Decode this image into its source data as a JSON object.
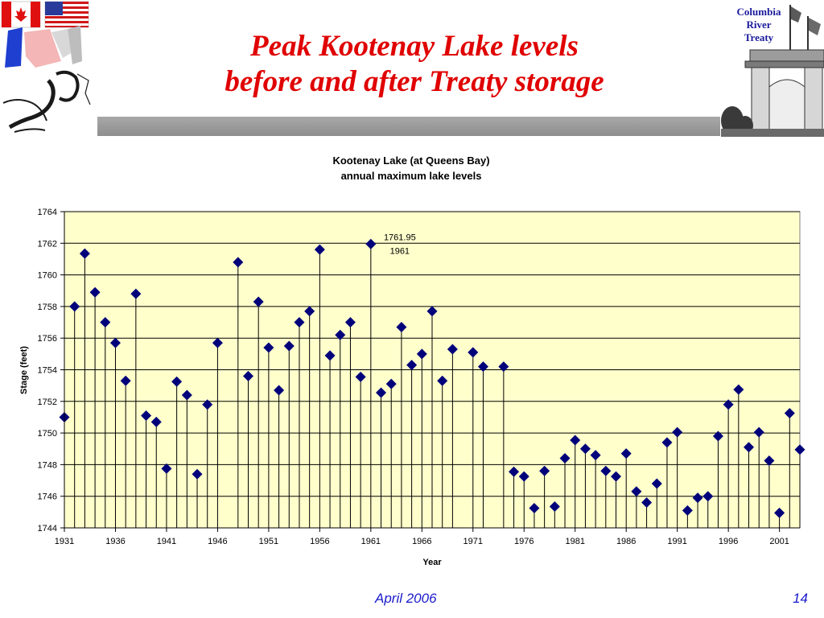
{
  "slide": {
    "title_line1": "Peak Kootenay Lake levels",
    "title_line2": "before and after Treaty storage",
    "brand_line1": "Columbia",
    "brand_line2": "River",
    "brand_line3": "Treaty",
    "footer_date": "April 2006",
    "page_number": "14"
  },
  "chart_data": {
    "type": "scatter",
    "style": "vertical drop lines from each point to the x-axis, diamond markers",
    "title": "Kootenay Lake (at Queens Bay)",
    "subtitle": "annual maximum lake levels",
    "xlabel": "Year",
    "ylabel": "Stage (feet)",
    "xlim": [
      1931,
      2003
    ],
    "ylim": [
      1744,
      1764
    ],
    "xticks": [
      1931,
      1936,
      1941,
      1946,
      1951,
      1956,
      1961,
      1966,
      1971,
      1976,
      1981,
      1986,
      1991,
      1996,
      2001
    ],
    "yticks": [
      1744,
      1746,
      1748,
      1750,
      1752,
      1754,
      1756,
      1758,
      1760,
      1762,
      1764
    ],
    "grid": "horizontal",
    "plot_background": "#ffffcc",
    "marker_color": "#00007a",
    "x": [
      1931,
      1932,
      1933,
      1934,
      1935,
      1936,
      1937,
      1938,
      1939,
      1940,
      1941,
      1942,
      1943,
      1944,
      1945,
      1946,
      1948,
      1949,
      1950,
      1951,
      1952,
      1953,
      1954,
      1955,
      1956,
      1957,
      1958,
      1959,
      1960,
      1961,
      1962,
      1963,
      1964,
      1965,
      1966,
      1967,
      1968,
      1969,
      1971,
      1972,
      1974,
      1975,
      1976,
      1977,
      1978,
      1979,
      1980,
      1981,
      1982,
      1983,
      1984,
      1985,
      1986,
      1987,
      1988,
      1989,
      1990,
      1991,
      1992,
      1993,
      1994,
      1995,
      1996,
      1997,
      1998,
      1999,
      2000,
      2001,
      2002,
      2003
    ],
    "y": [
      1751.0,
      1758.0,
      1761.35,
      1758.9,
      1757.0,
      1755.7,
      1753.3,
      1758.8,
      1751.1,
      1750.7,
      1747.75,
      1753.25,
      1752.4,
      1747.4,
      1751.8,
      1755.7,
      1760.8,
      1753.6,
      1758.3,
      1755.4,
      1752.7,
      1755.5,
      1757.0,
      1757.7,
      1761.6,
      1754.9,
      1756.2,
      1757.0,
      1753.55,
      1761.95,
      1752.55,
      1753.1,
      1756.7,
      1754.3,
      1755.0,
      1757.7,
      1753.3,
      1755.3,
      1755.1,
      1754.2,
      1754.2,
      1747.55,
      1747.25,
      1745.25,
      1747.6,
      1745.35,
      1748.4,
      1749.55,
      1749.0,
      1748.6,
      1747.6,
      1747.25,
      1748.7,
      1746.3,
      1745.6,
      1746.8,
      1749.4,
      1750.05,
      1745.1,
      1745.9,
      1746.0,
      1749.8,
      1751.8,
      1752.75,
      1749.1,
      1750.05,
      1748.25,
      1744.95,
      1751.25,
      1748.95
    ],
    "annotations": [
      {
        "x": 1961,
        "y": 1761.95,
        "value_label": "1761.95",
        "year_label": "1961"
      }
    ]
  }
}
